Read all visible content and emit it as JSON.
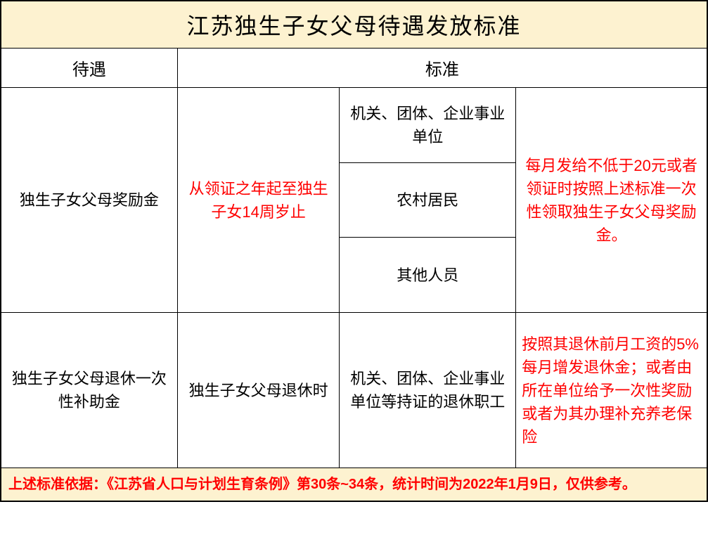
{
  "title": "江苏独生子女父母待遇发放标准",
  "headers": {
    "col1": "待遇",
    "col2": "标准"
  },
  "rows": [
    {
      "benefit": "独生子女父母奖励金",
      "period": "从领证之年起至独生子女14周岁止",
      "period_color": "#ff0000",
      "subgroups": [
        "机关、团体、企业事业单位",
        "农村居民",
        "其他人员"
      ],
      "detail": "每月发给不低于20元或者领证时按照上述标准一次性领取独生子女父母奖励金。",
      "detail_color": "#ff0000"
    },
    {
      "benefit": "独生子女父母退休一次性补助金",
      "period": "独生子女父母退休时",
      "period_color": "#000000",
      "subgroup_single": "机关、团体、企业事业单位等持证的退休职工",
      "detail": "按照其退休前月工资的5%每月增发退休金；或者由所在单位给予一次性奖励或者为其办理补充养老保险",
      "detail_color": "#ff0000",
      "detail_align": "left"
    }
  ],
  "footer": "上述标准依据：《江苏省人口与计划生育条例》第30条~34条，统计时间为2022年1月9日，仅供参考。",
  "colors": {
    "title_bg": "#fdf2d0",
    "footer_bg": "#fdf2d0",
    "footer_text": "#ff0000",
    "border": "#000000",
    "red": "#ff0000",
    "black": "#000000"
  },
  "fonts": {
    "title_size": 32,
    "header_size": 24,
    "cell_size": 22,
    "footer_size": 20
  }
}
